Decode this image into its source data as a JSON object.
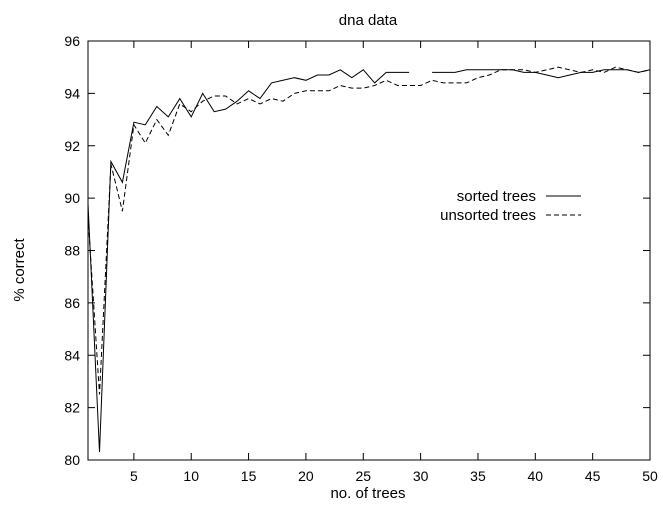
{
  "chart_data": {
    "type": "line",
    "title": "dna data",
    "xlabel": "no. of trees",
    "ylabel": "% correct",
    "xlim": [
      1,
      50
    ],
    "ylim": [
      80,
      96
    ],
    "xticks": [
      5,
      10,
      15,
      20,
      25,
      30,
      35,
      40,
      45,
      50
    ],
    "yticks": [
      80,
      82,
      84,
      86,
      88,
      90,
      92,
      94,
      96
    ],
    "grid": false,
    "legend_position": "right",
    "x": [
      1,
      2,
      3,
      4,
      5,
      6,
      7,
      8,
      9,
      10,
      11,
      12,
      13,
      14,
      15,
      16,
      17,
      18,
      19,
      20,
      21,
      22,
      23,
      24,
      25,
      26,
      27,
      28,
      29,
      30,
      31,
      32,
      33,
      34,
      35,
      36,
      37,
      38,
      39,
      40,
      41,
      42,
      43,
      44,
      45,
      46,
      47,
      48,
      49,
      50
    ],
    "series": [
      {
        "name": "sorted trees",
        "style": "solid",
        "values": [
          89.8,
          80.3,
          91.4,
          90.6,
          92.9,
          92.8,
          93.5,
          93.1,
          93.8,
          93.1,
          94.0,
          93.3,
          93.4,
          93.7,
          94.1,
          93.8,
          94.4,
          94.5,
          94.6,
          94.5,
          94.7,
          94.7,
          94.9,
          94.6,
          94.9,
          94.4,
          94.8,
          94.8,
          94.8,
          null,
          94.8,
          94.8,
          94.8,
          94.9,
          94.9,
          94.9,
          94.9,
          94.9,
          94.8,
          94.8,
          94.7,
          94.6,
          94.7,
          94.8,
          94.8,
          94.9,
          94.9,
          94.9,
          94.8,
          94.9
        ]
      },
      {
        "name": "unsorted trees",
        "style": "dashed",
        "values": [
          89.3,
          82.5,
          91.3,
          89.5,
          92.8,
          92.1,
          93.0,
          92.4,
          93.6,
          93.3,
          93.7,
          93.9,
          93.9,
          93.6,
          93.8,
          93.6,
          93.8,
          93.7,
          94.0,
          94.1,
          94.1,
          94.1,
          94.3,
          94.2,
          94.2,
          94.3,
          94.5,
          94.3,
          94.3,
          94.3,
          94.5,
          94.4,
          94.4,
          94.4,
          94.6,
          94.7,
          94.9,
          94.9,
          94.9,
          94.8,
          94.9,
          95.0,
          94.9,
          94.8,
          94.9,
          94.8,
          95.0,
          94.9,
          94.8,
          94.9
        ]
      }
    ]
  }
}
